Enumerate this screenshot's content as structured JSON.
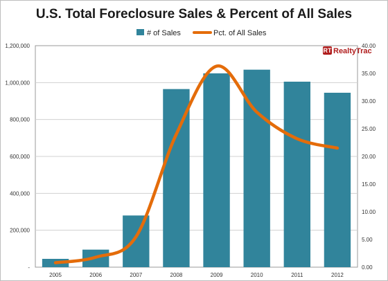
{
  "chart_data": {
    "type": "bar+line",
    "title": "U.S. Total Foreclosure Sales & Percent of All Sales",
    "categories": [
      "2005",
      "2006",
      "2007",
      "2008",
      "2009",
      "2010",
      "2011",
      "2012"
    ],
    "series": [
      {
        "name": "# of Sales",
        "type": "bar",
        "axis": "left",
        "color": "#31849B",
        "values": [
          45000,
          95000,
          280000,
          965000,
          1050000,
          1070000,
          1005000,
          945000
        ]
      },
      {
        "name": "Pct. of All Sales",
        "type": "line",
        "axis": "right",
        "color": "#E46C0A",
        "values": [
          0.8,
          1.8,
          5.5,
          24.0,
          36.3,
          28.0,
          23.2,
          21.5
        ]
      }
    ],
    "y_left": {
      "range": [
        0,
        1200000
      ],
      "ticks": [
        0,
        200000,
        400000,
        600000,
        800000,
        1000000,
        1200000
      ],
      "tick_labels": [
        "-",
        "200,000",
        "400,000",
        "600,000",
        "800,000",
        "1,000,000",
        "1,200,000"
      ]
    },
    "y_right": {
      "range": [
        0,
        40
      ],
      "ticks": [
        0,
        5,
        10,
        15,
        20,
        25,
        30,
        35,
        40
      ],
      "tick_labels": [
        "0.00",
        "5.00",
        "10.00",
        "15.00",
        "20.00",
        "25.00",
        "30.00",
        "35.00",
        "40.00"
      ]
    },
    "grid": true,
    "legend_position": "top-center"
  },
  "branding": {
    "logo_text": "RealtyTrac",
    "logo_mark": "RT",
    "logo_color": "#B01C1C"
  }
}
